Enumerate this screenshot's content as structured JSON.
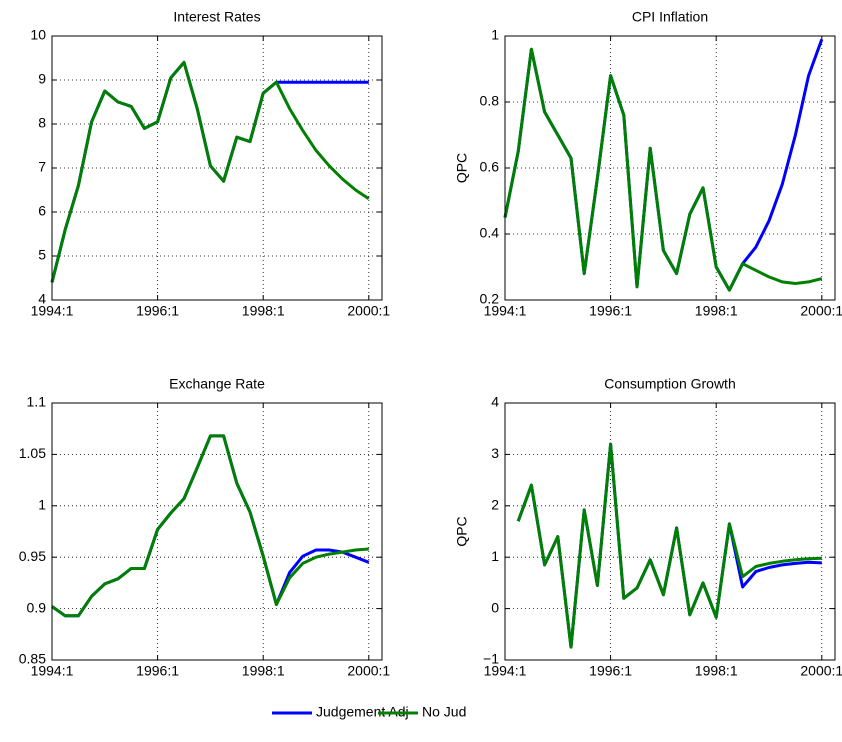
{
  "chart_data": [
    {
      "type": "line",
      "title": "Interest Rates",
      "x": [
        1994,
        1994.25,
        1994.5,
        1994.75,
        1995,
        1995.25,
        1995.5,
        1995.75,
        1996,
        1996.25,
        1996.5,
        1996.75,
        1997,
        1997.25,
        1997.5,
        1997.75,
        1998,
        1998.25,
        1998.5,
        1998.75,
        1999,
        1999.25,
        1999.5,
        1999.75,
        2000
      ],
      "xlim": [
        1994,
        2000.25
      ],
      "xticks": [
        {
          "value": 1994,
          "label": "1994:1"
        },
        {
          "value": 1996,
          "label": "1996:1"
        },
        {
          "value": 1998,
          "label": "1998:1"
        },
        {
          "value": 2000,
          "label": "2000:1"
        }
      ],
      "ylim": [
        4,
        10
      ],
      "yticks": [
        4,
        5,
        6,
        7,
        8,
        9,
        10
      ],
      "grid": true,
      "series": [
        {
          "name": "Judgement Adj",
          "color": "#0000ff",
          "values": [
            4.4,
            5.6,
            6.6,
            8.05,
            8.75,
            8.5,
            8.4,
            7.9,
            8.05,
            9.05,
            9.4,
            8.35,
            7.05,
            6.7,
            7.7,
            7.6,
            8.7,
            8.95,
            8.95,
            8.95,
            8.95,
            8.95,
            8.95,
            8.95,
            8.95
          ]
        },
        {
          "name": "No Jud",
          "color": "#008000",
          "values": [
            4.4,
            5.6,
            6.6,
            8.05,
            8.75,
            8.5,
            8.4,
            7.9,
            8.05,
            9.05,
            9.4,
            8.35,
            7.05,
            6.7,
            7.7,
            7.6,
            8.7,
            8.95,
            8.35,
            7.85,
            7.4,
            7.05,
            6.75,
            6.5,
            6.3
          ]
        }
      ]
    },
    {
      "type": "line",
      "title": "CPI Inflation",
      "ylabel": "QPC",
      "x": [
        1994,
        1994.25,
        1994.5,
        1994.75,
        1995,
        1995.25,
        1995.5,
        1995.75,
        1996,
        1996.25,
        1996.5,
        1996.75,
        1997,
        1997.25,
        1997.5,
        1997.75,
        1998,
        1998.25,
        1998.5,
        1998.75,
        1999,
        1999.25,
        1999.5,
        1999.75,
        2000
      ],
      "xlim": [
        1994,
        2000.25
      ],
      "xticks": [
        {
          "value": 1994,
          "label": "1994:1"
        },
        {
          "value": 1996,
          "label": "1996:1"
        },
        {
          "value": 1998,
          "label": "1998:1"
        },
        {
          "value": 2000,
          "label": "2000:1"
        }
      ],
      "ylim": [
        0.2,
        1
      ],
      "yticks": [
        0.2,
        0.4,
        0.6,
        0.8,
        1
      ],
      "grid": true,
      "series": [
        {
          "name": "Judgement Adj",
          "color": "#0000ff",
          "values": [
            0.45,
            0.65,
            0.96,
            0.77,
            0.7,
            0.63,
            0.28,
            0.57,
            0.88,
            0.76,
            0.24,
            0.66,
            0.35,
            0.28,
            0.46,
            0.54,
            0.3,
            0.23,
            0.31,
            0.36,
            0.44,
            0.55,
            0.7,
            0.88,
            0.99
          ]
        },
        {
          "name": "No Jud",
          "color": "#008000",
          "values": [
            0.45,
            0.65,
            0.96,
            0.77,
            0.7,
            0.63,
            0.28,
            0.57,
            0.88,
            0.76,
            0.24,
            0.66,
            0.35,
            0.28,
            0.46,
            0.54,
            0.3,
            0.23,
            0.31,
            0.29,
            0.27,
            0.255,
            0.25,
            0.255,
            0.265
          ]
        }
      ]
    },
    {
      "type": "line",
      "title": "Exchange Rate",
      "x": [
        1994,
        1994.25,
        1994.5,
        1994.75,
        1995,
        1995.25,
        1995.5,
        1995.75,
        1996,
        1996.25,
        1996.5,
        1996.75,
        1997,
        1997.25,
        1997.5,
        1997.75,
        1998,
        1998.25,
        1998.5,
        1998.75,
        1999,
        1999.25,
        1999.5,
        1999.75,
        2000
      ],
      "xlim": [
        1994,
        2000.25
      ],
      "xticks": [
        {
          "value": 1994,
          "label": "1994:1"
        },
        {
          "value": 1996,
          "label": "1996:1"
        },
        {
          "value": 1998,
          "label": "1998:1"
        },
        {
          "value": 2000,
          "label": "2000:1"
        }
      ],
      "ylim": [
        0.85,
        1.1
      ],
      "yticks": [
        0.85,
        0.9,
        0.95,
        1,
        1.05,
        1.1
      ],
      "grid": true,
      "series": [
        {
          "name": "Judgement Adj",
          "color": "#0000ff",
          "values": [
            0.902,
            0.893,
            0.893,
            0.912,
            0.924,
            0.929,
            0.939,
            0.939,
            0.977,
            0.993,
            1.007,
            1.037,
            1.068,
            1.068,
            1.022,
            0.994,
            0.951,
            0.904,
            0.935,
            0.951,
            0.957,
            0.957,
            0.955,
            0.95,
            0.945
          ]
        },
        {
          "name": "No Jud",
          "color": "#008000",
          "values": [
            0.902,
            0.893,
            0.893,
            0.912,
            0.924,
            0.929,
            0.939,
            0.939,
            0.977,
            0.993,
            1.007,
            1.037,
            1.068,
            1.068,
            1.022,
            0.994,
            0.951,
            0.904,
            0.93,
            0.944,
            0.95,
            0.953,
            0.955,
            0.957,
            0.958
          ]
        }
      ]
    },
    {
      "type": "line",
      "title": "Consumption Growth",
      "ylabel": "QPC",
      "x": [
        1994,
        1994.25,
        1994.5,
        1994.75,
        1995,
        1995.25,
        1995.5,
        1995.75,
        1996,
        1996.25,
        1996.5,
        1996.75,
        1997,
        1997.25,
        1997.5,
        1997.75,
        1998,
        1998.25,
        1998.5,
        1998.75,
        1999,
        1999.25,
        1999.5,
        1999.75,
        2000
      ],
      "xlim": [
        1994,
        2000.25
      ],
      "xticks": [
        {
          "value": 1994,
          "label": "1994:1"
        },
        {
          "value": 1996,
          "label": "1996:1"
        },
        {
          "value": 1998,
          "label": "1998:1"
        },
        {
          "value": 2000,
          "label": "2000:1"
        }
      ],
      "ylim": [
        -1,
        4
      ],
      "yticks": [
        {
          "value": -1,
          "label": "−1"
        },
        0,
        1,
        2,
        3,
        4
      ],
      "grid": true,
      "series": [
        {
          "name": "Judgement Adj",
          "color": "#0000ff",
          "values": [
            null,
            1.7,
            2.4,
            0.85,
            1.4,
            -0.75,
            1.92,
            0.45,
            3.2,
            0.2,
            0.4,
            0.95,
            0.27,
            1.57,
            -0.12,
            0.5,
            -0.17,
            1.65,
            0.42,
            0.72,
            0.8,
            0.85,
            0.88,
            0.9,
            0.89
          ]
        },
        {
          "name": "No Jud",
          "color": "#008000",
          "values": [
            null,
            1.7,
            2.4,
            0.85,
            1.4,
            -0.75,
            1.92,
            0.45,
            3.2,
            0.2,
            0.4,
            0.95,
            0.27,
            1.57,
            -0.12,
            0.5,
            -0.17,
            1.65,
            0.62,
            0.82,
            0.88,
            0.92,
            0.95,
            0.97,
            0.98
          ]
        }
      ]
    }
  ]
}
